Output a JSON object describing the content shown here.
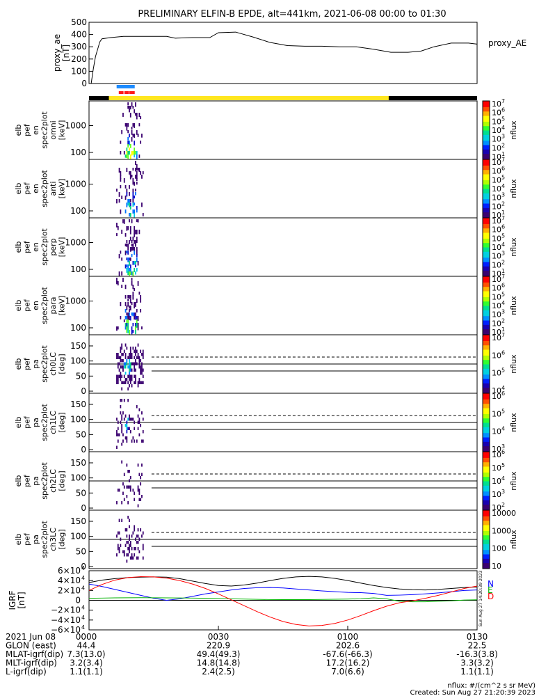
{
  "title": "PRELIMINARY ELFIN-B EPDE, alt=441km, 2021-06-08 00:00 to 01:30",
  "proxy_ae": {
    "ylabel_lines": [
      "proxy_ae",
      "[nT]"
    ],
    "legend": "proxy_AE",
    "yticks": [
      "0",
      "100",
      "200",
      "300",
      "400",
      "500"
    ],
    "ylim": [
      0,
      500
    ],
    "t": [
      0.5,
      1,
      1.5,
      2,
      2.5,
      3,
      5,
      8,
      10,
      14,
      18,
      20,
      24,
      28,
      30,
      34,
      38,
      42,
      46,
      50,
      54,
      58,
      62,
      66,
      70,
      74,
      77,
      80,
      84,
      88,
      90
    ],
    "values": [
      0,
      120,
      220,
      280,
      340,
      365,
      375,
      385,
      385,
      385,
      385,
      370,
      375,
      375,
      415,
      420,
      380,
      335,
      310,
      305,
      305,
      300,
      300,
      280,
      255,
      255,
      265,
      300,
      330,
      330,
      322
    ]
  },
  "orbit_bars": {
    "science_zone": {
      "t0": 6.4,
      "t1": 10.6,
      "color": "#1e8cff"
    },
    "burst": [
      {
        "t0": 6.9,
        "t1": 8.0
      },
      {
        "t0": 8.2,
        "t1": 9.2
      },
      {
        "t0": 9.3,
        "t1": 10.6
      }
    ],
    "burst_color": "#ff1a1a",
    "sunlight": {
      "t0": 4.6,
      "t1": 69.5,
      "color": "#ffe620"
    },
    "eclipse_color": "#000000"
  },
  "energy_panels": [
    {
      "label_lines": [
        "elb",
        "pef",
        "en",
        "spec2plot",
        "omni",
        "[keV]"
      ],
      "yticks": [
        "100",
        "1000"
      ]
    },
    {
      "label_lines": [
        "elb",
        "pef",
        "en",
        "spec2plot",
        "anti",
        "[keV]"
      ],
      "yticks": [
        "100",
        "1000"
      ]
    },
    {
      "label_lines": [
        "elb",
        "pef",
        "en",
        "spec2plot",
        "perp",
        "[keV]"
      ],
      "yticks": [
        "100",
        "1000"
      ]
    },
    {
      "label_lines": [
        "elb",
        "pef",
        "en",
        "spec2plot",
        "para",
        "[keV]"
      ],
      "yticks": [
        "100",
        "1000"
      ]
    }
  ],
  "pa_panels": [
    {
      "label_lines": [
        "elb",
        "pef",
        "pa",
        "spec2plot",
        "ch0LC",
        "[deg]"
      ],
      "yticks": [
        "0",
        "50",
        "100",
        "150"
      ]
    },
    {
      "label_lines": [
        "elb",
        "pef",
        "pa",
        "spec2plot",
        "ch1LC",
        "[deg]"
      ],
      "yticks": [
        "0",
        "50",
        "100",
        "150"
      ]
    },
    {
      "label_lines": [
        "elb",
        "pef",
        "pa",
        "spec2plot",
        "ch2LC",
        "[deg]"
      ],
      "yticks": [
        "0",
        "50",
        "100",
        "150"
      ]
    },
    {
      "label_lines": [
        "elb",
        "pef",
        "pa",
        "spec2plot",
        "ch3LC",
        "[deg]"
      ],
      "yticks": [
        "0",
        "50",
        "100",
        "150"
      ]
    }
  ],
  "colorbars": [
    {
      "label": "nflux",
      "ticks": [
        "10",
        "10",
        "10",
        "10",
        "10",
        "10",
        "10"
      ],
      "exps": [
        "1",
        "2",
        "3",
        "4",
        "5",
        "6",
        "7"
      ]
    },
    {
      "label": "nflux",
      "ticks": [
        "10",
        "10",
        "10",
        "10",
        "10",
        "10",
        "10"
      ],
      "exps": [
        "1",
        "2",
        "3",
        "4",
        "5",
        "6",
        "7"
      ]
    },
    {
      "label": "nflux",
      "ticks": [
        "10",
        "10",
        "10",
        "10",
        "10",
        "10",
        "10"
      ],
      "exps": [
        "1",
        "2",
        "3",
        "4",
        "5",
        "6",
        "7"
      ]
    },
    {
      "label": "nflux",
      "ticks": [
        "10",
        "10",
        "10",
        "10",
        "10",
        "10",
        "10"
      ],
      "exps": [
        "1",
        "2",
        "3",
        "4",
        "5",
        "6",
        "7"
      ]
    },
    {
      "label": "nflux",
      "ticks": [
        "10",
        "10",
        "10",
        "10"
      ],
      "exps": [
        "4",
        "5",
        "6",
        "7"
      ]
    },
    {
      "label": "nflux",
      "ticks": [
        "10",
        "10",
        "10",
        "10"
      ],
      "exps": [
        "3",
        "4",
        "5",
        "6"
      ]
    },
    {
      "label": "nflux",
      "ticks": [
        "10",
        "10",
        "10",
        "10",
        "10"
      ],
      "exps": [
        "2",
        "3",
        "4",
        "5",
        "6"
      ]
    },
    {
      "label": "nflux",
      "ticks": [
        "10",
        "100",
        "1000",
        "10000"
      ],
      "exps": [
        "",
        "",
        "",
        ""
      ]
    }
  ],
  "igrf": {
    "ylabel_lines": [
      "IGRF",
      "[nT]"
    ],
    "ytick_mantissa": [
      "−6×10",
      "−4×10",
      "−2×10",
      "0",
      "2×10",
      "4×10",
      "6×10"
    ],
    "ytick_exp": [
      "4",
      "4",
      "4",
      "",
      "4",
      "4",
      "4"
    ],
    "ylim": [
      -60000,
      60000
    ],
    "legend": [
      "N",
      "E",
      "D"
    ],
    "legend_colors": [
      "#0000ff",
      "#00b000",
      "#ff0000"
    ],
    "t": [
      0,
      3,
      6,
      9,
      12,
      15,
      18,
      21,
      24,
      27,
      30,
      33,
      36,
      39,
      42,
      45,
      48,
      51,
      54,
      57,
      60,
      63,
      66,
      69,
      72,
      75,
      78,
      81,
      84,
      87,
      90
    ],
    "total": [
      36000,
      41000,
      44000,
      46000,
      47000,
      47500,
      47000,
      44000,
      39000,
      34000,
      30000,
      29000,
      31000,
      35000,
      40000,
      44500,
      47500,
      48500,
      47500,
      44500,
      40000,
      35000,
      30000,
      26000,
      23000,
      21500,
      21000,
      22000,
      24000,
      26000,
      27000
    ],
    "N": [
      33000,
      28000,
      22000,
      16000,
      10000,
      4000,
      0,
      3000,
      8000,
      13000,
      17000,
      21000,
      24000,
      25500,
      26000,
      25000,
      23000,
      21000,
      19000,
      17500,
      16000,
      15500,
      14000,
      10000,
      10500,
      11500,
      13000,
      15000,
      17500,
      20000,
      21000
    ],
    "E": [
      4000,
      4500,
      5000,
      5200,
      5300,
      5200,
      5000,
      4800,
      4500,
      4000,
      3500,
      3000,
      2500,
      2000,
      1500,
      1500,
      1500,
      1500,
      1800,
      2200,
      2500,
      3000,
      5000,
      3000,
      -2000,
      -3000,
      -3000,
      -2000,
      -1000,
      500,
      1000
    ],
    "D": [
      20000,
      32000,
      41000,
      46000,
      48000,
      47500,
      45000,
      40000,
      33000,
      24000,
      13000,
      1000,
      -11000,
      -23000,
      -34000,
      -43000,
      -49000,
      -52000,
      -51000,
      -47000,
      -40000,
      -31000,
      -21000,
      -12000,
      -5000,
      -1000,
      4000,
      10000,
      17000,
      24000,
      29000
    ]
  },
  "footer": {
    "rows": [
      {
        "label": "2021 Jun 08",
        "vals": [
          "0000",
          "0030",
          "0100",
          "0130"
        ]
      },
      {
        "label": "GLON (east)",
        "vals": [
          "44.4",
          "220.9",
          "202.6",
          "22.5"
        ]
      },
      {
        "label": "MLAT-igrf(dip)",
        "vals": [
          "7.3(13.0)",
          "49.4(49.3)",
          "-67.6(-66.3)",
          "-16.3(3.8)"
        ]
      },
      {
        "label": "MLT-igrf(dip)",
        "vals": [
          "3.2(3.4)",
          "14.8(14.8)",
          "17.2(16.2)",
          "3.3(3.2)"
        ]
      },
      {
        "label": "L-igrf(dip)",
        "vals": [
          "1.1(1.1)",
          "2.4(2.5)",
          "7.0(6.6)",
          "1.1(1.1)"
        ]
      }
    ],
    "note": "nflux: #/(cm^2 s sr MeV)",
    "created": "Created: Sun Aug 27 21:20:39 2023",
    "side_stamp": "Sun Aug 27 14:20:39 2023"
  }
}
